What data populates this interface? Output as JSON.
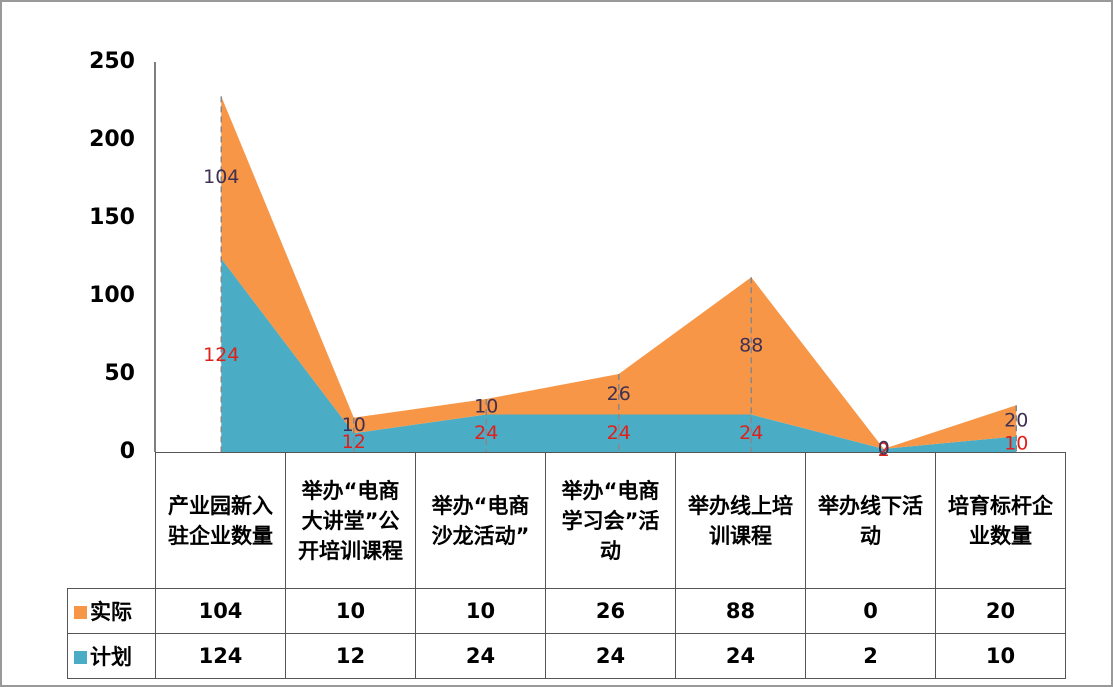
{
  "chart_data": {
    "type": "area",
    "stacked": true,
    "categories": [
      "产业园新入驻企业数量",
      "举办“电商大讲堂”公开培训课程",
      "举办“电商沙龙活动”",
      "举办“电商学习会”活动",
      "举办线上培训课程",
      "举办线下活动",
      "培育标杆企业数量"
    ],
    "series": [
      {
        "name": "计划",
        "color": "#4bacc6",
        "label_color": "#e0201a",
        "values": [
          124,
          12,
          24,
          24,
          24,
          2,
          10
        ]
      },
      {
        "name": "实际",
        "color": "#f79646",
        "label_color": "#403152",
        "values": [
          104,
          10,
          10,
          26,
          88,
          0,
          20
        ]
      }
    ],
    "ylim": [
      0,
      250
    ],
    "yticks": [
      0,
      50,
      100,
      150,
      200,
      250
    ],
    "data_table": true
  }
}
